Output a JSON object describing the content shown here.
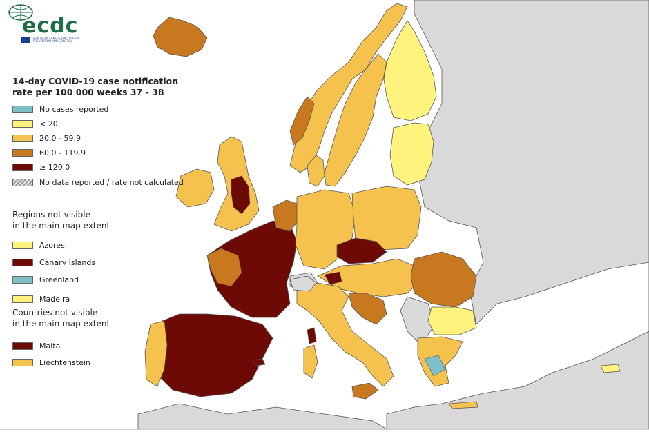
{
  "logo": {
    "text": "ecdc",
    "subtitle": "EUROPEAN CENTRE FOR DISEASE PREVENTION AND CONTROL"
  },
  "legend": {
    "title_line1": "14-day COVID-19 case notification",
    "title_line2": "rate per 100 000 weeks 37 - 38",
    "classes": [
      {
        "label": "No cases reported",
        "color": "#7fbfca"
      },
      {
        "label": "< 20",
        "color": "#fff27d"
      },
      {
        "label": "20.0 - 59.9",
        "color": "#f5c24d"
      },
      {
        "label": "60.0 - 119.9",
        "color": "#c8781e"
      },
      {
        "label": "≥ 120.0",
        "color": "#6e0a05"
      },
      {
        "label": "No data reported / rate not calculated",
        "color": "hatched"
      }
    ]
  },
  "regions_not_visible": {
    "title_line1": "Regions not visible",
    "title_line2": "in the main map extent",
    "items": [
      {
        "label": "Azores",
        "color": "#fff27d"
      },
      {
        "label": "Canary Islands",
        "color": "#6e0a05"
      },
      {
        "label": "Greenland",
        "color": "#7fbfca"
      },
      {
        "label": "Madeira",
        "color": "#fff27d"
      }
    ]
  },
  "countries_not_visible": {
    "title_line1": "Countries not visible",
    "title_line2": "in the main map extent",
    "items": [
      {
        "label": "Malta",
        "color": "#6e0a05"
      },
      {
        "label": "Liechtenstein",
        "color": "#f5c24d"
      }
    ]
  },
  "colors": {
    "sea": "#ffffff",
    "non_eu_land": "#d9d9d9",
    "border": "#555555"
  }
}
